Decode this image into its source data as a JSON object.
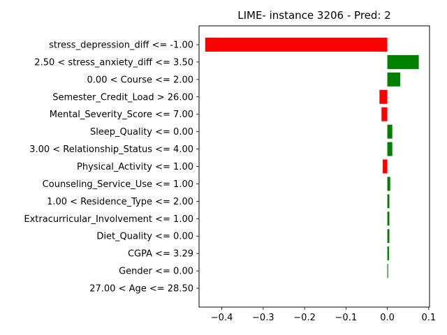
{
  "chart_data": {
    "type": "bar",
    "orientation": "horizontal",
    "title": "LIME- instance 3206 - Pred: 2",
    "xlabel": "",
    "ylabel": "",
    "xlim": [
      -0.455,
      0.102
    ],
    "x_ticks": [
      -0.4,
      -0.3,
      -0.2,
      -0.1,
      0.0,
      0.1
    ],
    "x_tick_labels": [
      "−0.4",
      "−0.3",
      "−0.2",
      "−0.1",
      "0.0",
      "0.1"
    ],
    "grid": false,
    "legend": "none",
    "positive_color": "#008000",
    "negative_color": "#ff0000",
    "categories": [
      "stress_depression_diff <= -1.00",
      "2.50 < stress_anxiety_diff <= 3.50",
      "0.00 < Course <= 2.00",
      "Semester_Credit_Load > 26.00",
      "Mental_Severity_Score <= 7.00",
      "Sleep_Quality <= 0.00",
      "3.00 < Relationship_Status <= 4.00",
      "Physical_Activity <= 1.00",
      "Counseling_Service_Use <= 1.00",
      "1.00 < Residence_Type <= 2.00",
      "Extracurricular_Involvement <= 1.00",
      "Diet_Quality <= 0.00",
      "CGPA <= 3.29",
      "Gender <= 0.00",
      "27.00 < Age <= 28.50"
    ],
    "values": [
      -0.44,
      0.076,
      0.031,
      -0.019,
      -0.014,
      0.012,
      0.012,
      -0.011,
      0.007,
      0.005,
      0.005,
      0.005,
      0.004,
      0.002,
      0.0
    ]
  }
}
